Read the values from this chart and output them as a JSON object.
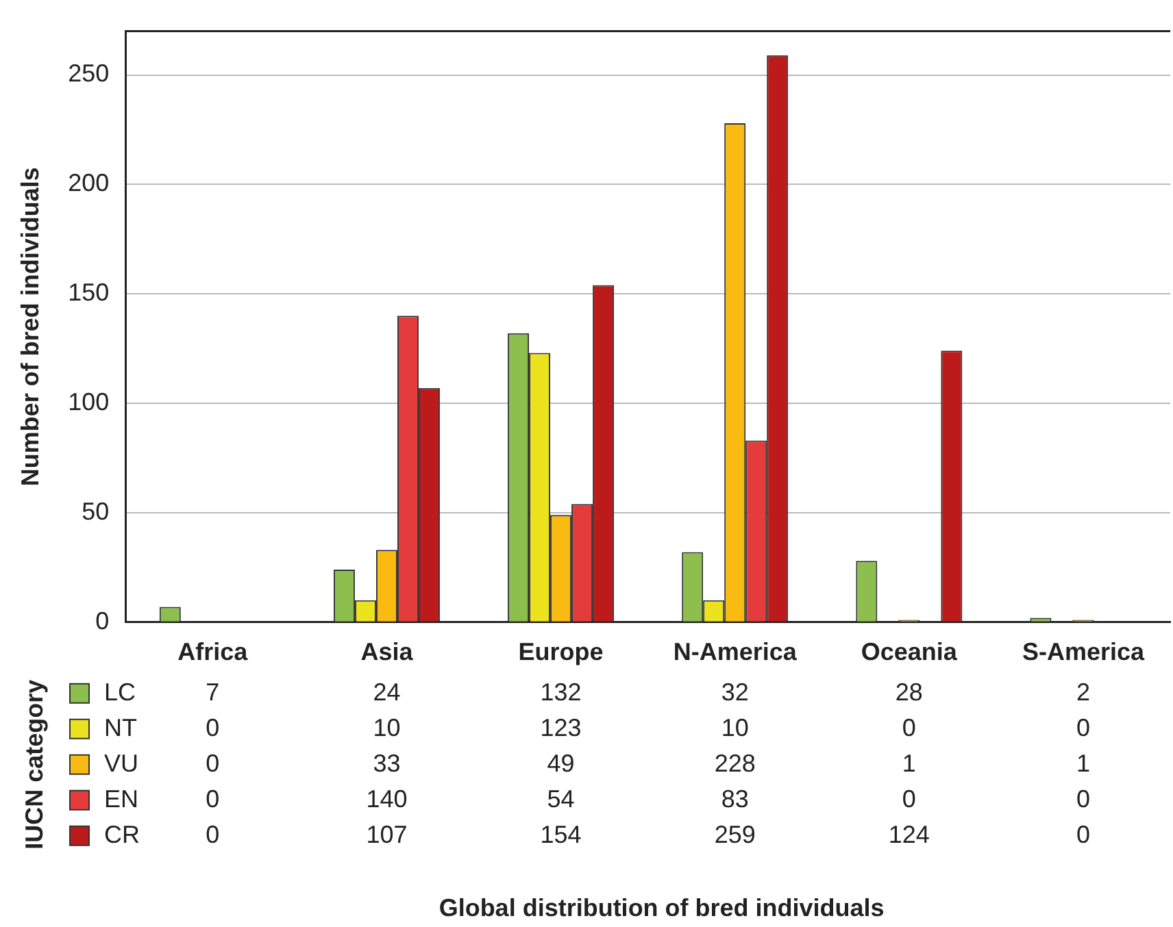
{
  "chart_data": {
    "type": "bar",
    "annotations": [
      "Global distribution of bred individuals"
    ],
    "ylabel": "Number of bred individuals",
    "legend_title": "IUCN category",
    "categories": [
      "Africa",
      "Asia",
      "Europe",
      "N-America",
      "Oceania",
      "S-America"
    ],
    "series": [
      {
        "name": "LC",
        "color": "#8cbf4e",
        "values": [
          7,
          24,
          132,
          32,
          28,
          2
        ]
      },
      {
        "name": "NT",
        "color": "#ede21e",
        "values": [
          0,
          10,
          123,
          10,
          0,
          0
        ]
      },
      {
        "name": "VU",
        "color": "#f9bb12",
        "values": [
          0,
          33,
          49,
          228,
          1,
          1
        ]
      },
      {
        "name": "EN",
        "color": "#e43c3c",
        "values": [
          0,
          140,
          54,
          83,
          0,
          0
        ]
      },
      {
        "name": "CR",
        "color": "#bc1a1b",
        "values": [
          0,
          107,
          154,
          259,
          124,
          0
        ]
      }
    ],
    "ylim": [
      0,
      270
    ],
    "yticks": [
      0,
      50,
      100,
      150,
      200,
      250
    ],
    "grid": "y",
    "legend": "bottom left",
    "data_labels": true
  }
}
